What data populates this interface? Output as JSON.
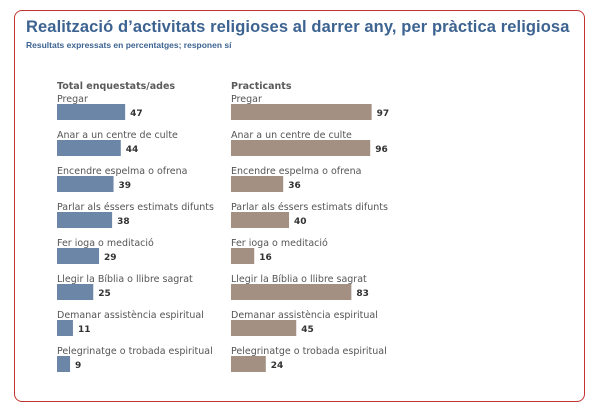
{
  "chart_data": {
    "type": "bar",
    "title": "Realització d’activitats religioses al darrer any, per pràctica religiosa",
    "subtitle": "Resultats expressats en percentatges; responen sí",
    "categories": [
      "Pregar",
      "Anar a un centre de culte",
      "Encendre espelma o ofrena",
      "Parlar als éssers estimats difunts",
      "Fer ioga o meditació",
      "Llegir la Bíblia o llibre sagrat",
      "Demanar assistència espiritual",
      "Pelegrinatge o trobada espiritual"
    ],
    "series": [
      {
        "name": "Total enquestats/ades",
        "color": "#6b86a6",
        "values": [
          47,
          44,
          39,
          38,
          29,
          25,
          11,
          9
        ]
      },
      {
        "name": "Practicants",
        "color": "#a39083",
        "values": [
          97,
          96,
          36,
          40,
          16,
          83,
          45,
          24
        ]
      }
    ],
    "ylim": [
      0,
      100
    ],
    "grid": false,
    "legend": "panel-titles"
  }
}
